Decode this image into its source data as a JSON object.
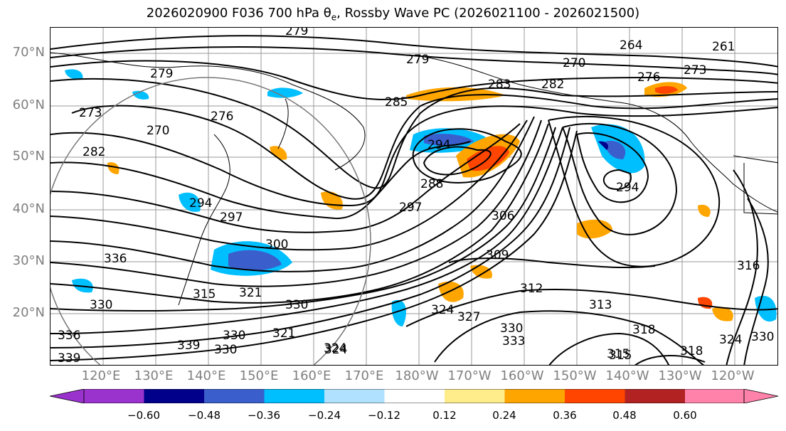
{
  "title": "2026020900 F036 700 hPa θe, Rossby Wave PC (2026021100 - 2026021500)",
  "lat_labels": [
    "70°N",
    "60°N",
    "50°N",
    "40°N",
    "30°N",
    "20°N"
  ],
  "lon_labels": [
    "120°E",
    "130°E",
    "140°E",
    "150°E",
    "160°E",
    "170°E",
    "180°W",
    "170°W",
    "160°W",
    "150°W",
    "140°W",
    "130°W",
    "120°W"
  ],
  "colorbar": {
    "ticks": [
      "−0.60",
      "−0.48",
      "−0.36",
      "−0.24",
      "−0.12",
      "0.12",
      "0.24",
      "0.36",
      "0.48",
      "0.60"
    ],
    "colors": [
      "#9a32cd",
      "#00008b",
      "#3a5fcd",
      "#00bfff",
      "#b0e2ff",
      "#ffffff",
      "#ffec8b",
      "#ffa500",
      "#ff4500",
      "#b22222",
      "#ff82ab"
    ]
  },
  "contour_labels": [
    "279",
    "279",
    "279",
    "270",
    "264",
    "261",
    "273",
    "276",
    "282",
    "283",
    "285",
    "276",
    "270",
    "273",
    "282",
    "294",
    "294",
    "288",
    "297",
    "294",
    "297",
    "300",
    "306",
    "309",
    "316",
    "312",
    "313",
    "315",
    "318",
    "315",
    "321",
    "330",
    "327",
    "324",
    "321",
    "324",
    "330",
    "333",
    "339",
    "330",
    "336",
    "336",
    "339",
    "318",
    "324",
    "330",
    "315",
    "324",
    "330",
    "330"
  ]
}
